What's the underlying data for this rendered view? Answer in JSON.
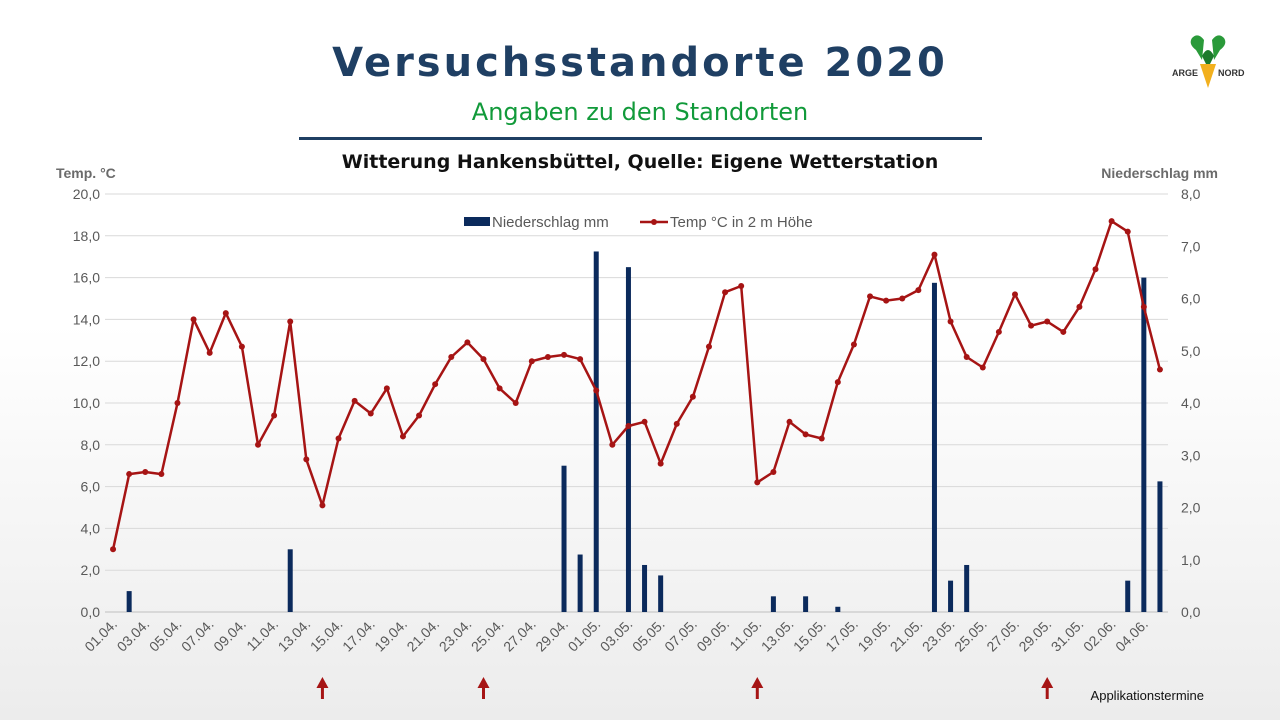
{
  "slide": {
    "title": "Versuchsstandorte 2020",
    "subtitle": "Angaben zu den Standorten",
    "logo_text_left": "ARGE",
    "logo_text_right": "NORD"
  },
  "colors": {
    "title": "#1f3f63",
    "subtitle": "#119a3a",
    "bars": "#0b2a5c",
    "line": "#a61414",
    "arrows": "#a61414",
    "axis_text": "#595959",
    "grid": "#d9d9d9"
  },
  "chart_data": {
    "type": "bar+line",
    "title": "Witterung Hankensbüttel, Quelle: Eigene Wetterstation",
    "y_left_label": "Temp. °C",
    "y_right_label": "Niederschlag mm",
    "y_left_range": [
      0,
      20
    ],
    "y_right_range": [
      0,
      8
    ],
    "y_left_ticks": [
      "0,0",
      "2,0",
      "4,0",
      "6,0",
      "8,0",
      "10,0",
      "12,0",
      "14,0",
      "16,0",
      "18,0",
      "20,0"
    ],
    "y_right_ticks": [
      "0,0",
      "1,0",
      "2,0",
      "3,0",
      "4,0",
      "5,0",
      "6,0",
      "7,0",
      "8,0"
    ],
    "grid": true,
    "legend_position": "top",
    "x_tick_labels": [
      "01.04.",
      "03.04.",
      "05.04.",
      "07.04.",
      "09.04.",
      "11.04.",
      "13.04.",
      "15.04.",
      "17.04.",
      "19.04.",
      "21.04.",
      "23.04.",
      "25.04.",
      "27.04.",
      "29.04.",
      "01.05.",
      "03.05.",
      "05.05.",
      "07.05.",
      "09.05.",
      "11.05.",
      "13.05.",
      "15.05.",
      "17.05.",
      "19.05.",
      "21.05.",
      "23.05.",
      "25.05.",
      "27.05.",
      "29.05.",
      "31.05.",
      "02.06.",
      "04.06."
    ],
    "series": [
      {
        "name": "Niederschlag mm",
        "type": "bar",
        "axis": "right",
        "values": [
          0,
          0.4,
          0,
          0,
          0,
          0,
          0,
          0,
          0,
          0,
          0,
          1.2,
          0,
          0,
          0,
          0,
          0,
          0,
          0,
          0,
          0,
          0,
          0,
          0,
          0,
          0,
          0,
          0,
          2.8,
          1.1,
          6.9,
          0,
          6.6,
          0.9,
          0.7,
          0,
          0,
          0,
          0,
          0,
          0,
          0.3,
          0,
          0.3,
          0,
          0.1,
          0,
          0,
          0,
          0,
          0,
          6.3,
          0.6,
          0.9,
          0,
          0,
          0,
          0,
          0,
          0,
          0,
          0,
          0,
          0.6,
          6.4,
          2.5
        ]
      },
      {
        "name": "Temp °C in 2 m Höhe",
        "type": "line",
        "axis": "left",
        "values": [
          3.0,
          6.6,
          6.7,
          6.6,
          10.0,
          14.0,
          12.4,
          14.3,
          12.7,
          8.0,
          9.4,
          13.9,
          7.3,
          5.1,
          8.3,
          10.1,
          9.5,
          10.7,
          8.4,
          9.4,
          10.9,
          12.2,
          12.9,
          12.1,
          10.7,
          10.0,
          12.0,
          12.2,
          12.3,
          12.1,
          10.6,
          8.0,
          8.9,
          9.1,
          7.1,
          9.0,
          10.3,
          12.7,
          15.3,
          15.6,
          6.2,
          6.7,
          9.1,
          8.5,
          8.3,
          11.0,
          12.8,
          15.1,
          14.9,
          15.0,
          15.4,
          17.1,
          13.9,
          12.2,
          11.7,
          13.4,
          15.2,
          13.7,
          13.9,
          13.4,
          14.6,
          16.4,
          18.7,
          18.2,
          14.6,
          11.6
        ]
      }
    ],
    "application_dates": [
      "14.04.",
      "24.04.",
      "11.05.",
      "29.05."
    ],
    "application_label": "Applikationstermine"
  }
}
